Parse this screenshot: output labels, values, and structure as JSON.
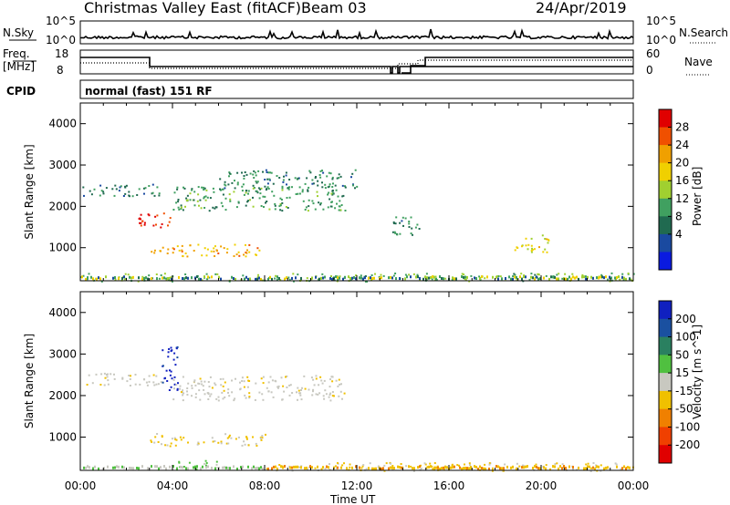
{
  "header": {
    "title": "Christmas Valley East (fitACF)",
    "beam": "Beam 03",
    "date": "24/Apr/2019"
  },
  "panels": {
    "nsky": {
      "label": "N.Sky",
      "ytick_top": "10^5",
      "ytick_bottom": "10^0",
      "right_label": "N.Search",
      "right_top": "10^5",
      "right_bottom": "10^0"
    },
    "freq": {
      "label_top": "Freq.",
      "label_unit": "[MHz]",
      "ytick_top": "18",
      "ytick_bottom": "8",
      "right_label": "Nave",
      "right_top": "60",
      "right_bottom": "0",
      "cpid_label": "CPID"
    },
    "cpid": {
      "text": "normal (fast) 151 RF"
    }
  },
  "colorbars": {
    "power": {
      "label": "Power [dB]",
      "ticks": [
        "28",
        "24",
        "20",
        "16",
        "12",
        "8",
        "4"
      ],
      "colors": [
        "#e00000",
        "#f05000",
        "#f0a000",
        "#f0d000",
        "#a0d030",
        "#40a060",
        "#206a50",
        "#1a4aa0",
        "#0a1ae0"
      ]
    },
    "velocity": {
      "label": "Velocity [m s^-1]",
      "ticks": [
        "200",
        "100",
        "50",
        "15",
        "-15",
        "-50",
        "-100",
        "-200"
      ],
      "colors": [
        "#1020c0",
        "#1a50a0",
        "#2a8060",
        "#50c040",
        "#c8c8c0",
        "#f0c000",
        "#f08000",
        "#f04000",
        "#e00000"
      ]
    }
  },
  "chart_data": [
    {
      "type": "heatmap",
      "title": "Power",
      "ylabel": "Slant Range [km]",
      "xlabel": "Time UT",
      "x_ticks": [
        "00:00",
        "04:00",
        "08:00",
        "12:00",
        "16:00",
        "20:00",
        "00:00"
      ],
      "y_ticks": [
        1000,
        2000,
        3000,
        4000
      ],
      "ylim": [
        200,
        4500
      ],
      "xlim_hours": [
        0,
        24
      ],
      "scale_label": "Power [dB]",
      "scale_ticks": [
        4,
        8,
        12,
        16,
        20,
        24,
        28
      ],
      "echo_regions": [
        {
          "t_start": 0.0,
          "t_end": 3.5,
          "range_start": 2250,
          "range_end": 2550,
          "power": 8
        },
        {
          "t_start": 2.5,
          "t_end": 4.0,
          "range_start": 1450,
          "range_end": 1850,
          "power": 28
        },
        {
          "t_start": 4.0,
          "t_end": 11.5,
          "range_start": 1900,
          "range_end": 2500,
          "power": 10
        },
        {
          "t_start": 6.0,
          "t_end": 12.0,
          "range_start": 2400,
          "range_end": 2900,
          "power": 8
        },
        {
          "t_start": 3.0,
          "t_end": 8.0,
          "range_start": 800,
          "range_end": 1100,
          "power": 20
        },
        {
          "t_start": 0.0,
          "t_end": 24.0,
          "range_start": 200,
          "range_end": 400,
          "power": 12
        },
        {
          "t_start": 18.8,
          "t_end": 20.3,
          "range_start": 900,
          "range_end": 1350,
          "power": 16
        },
        {
          "t_start": 13.5,
          "t_end": 14.8,
          "range_start": 1300,
          "range_end": 1800,
          "power": 8
        }
      ]
    },
    {
      "type": "heatmap",
      "title": "Velocity",
      "ylabel": "Slant Range [km]",
      "xlabel": "Time UT",
      "x_ticks": [
        "00:00",
        "04:00",
        "08:00",
        "12:00",
        "16:00",
        "20:00",
        "00:00"
      ],
      "y_ticks": [
        1000,
        2000,
        3000,
        4000
      ],
      "ylim": [
        200,
        4500
      ],
      "xlim_hours": [
        0,
        24
      ],
      "scale_label": "Velocity [m s^-1]",
      "scale_ticks": [
        -200,
        -100,
        -50,
        -15,
        15,
        50,
        100,
        200
      ],
      "echo_regions": [
        {
          "t_start": 0.0,
          "t_end": 3.5,
          "range_start": 2250,
          "range_end": 2550,
          "velocity": 0
        },
        {
          "t_start": 3.5,
          "t_end": 4.2,
          "range_start": 2100,
          "range_end": 3300,
          "velocity": 200
        },
        {
          "t_start": 4.0,
          "t_end": 11.5,
          "range_start": 1900,
          "range_end": 2500,
          "velocity": 0
        },
        {
          "t_start": 3.0,
          "t_end": 8.0,
          "range_start": 800,
          "range_end": 1100,
          "velocity": -30
        },
        {
          "t_start": 4.0,
          "t_end": 6.0,
          "range_start": 250,
          "range_end": 450,
          "velocity": 30
        },
        {
          "t_start": 8.0,
          "t_end": 24.0,
          "range_start": 200,
          "range_end": 400,
          "velocity": -40
        }
      ]
    }
  ]
}
